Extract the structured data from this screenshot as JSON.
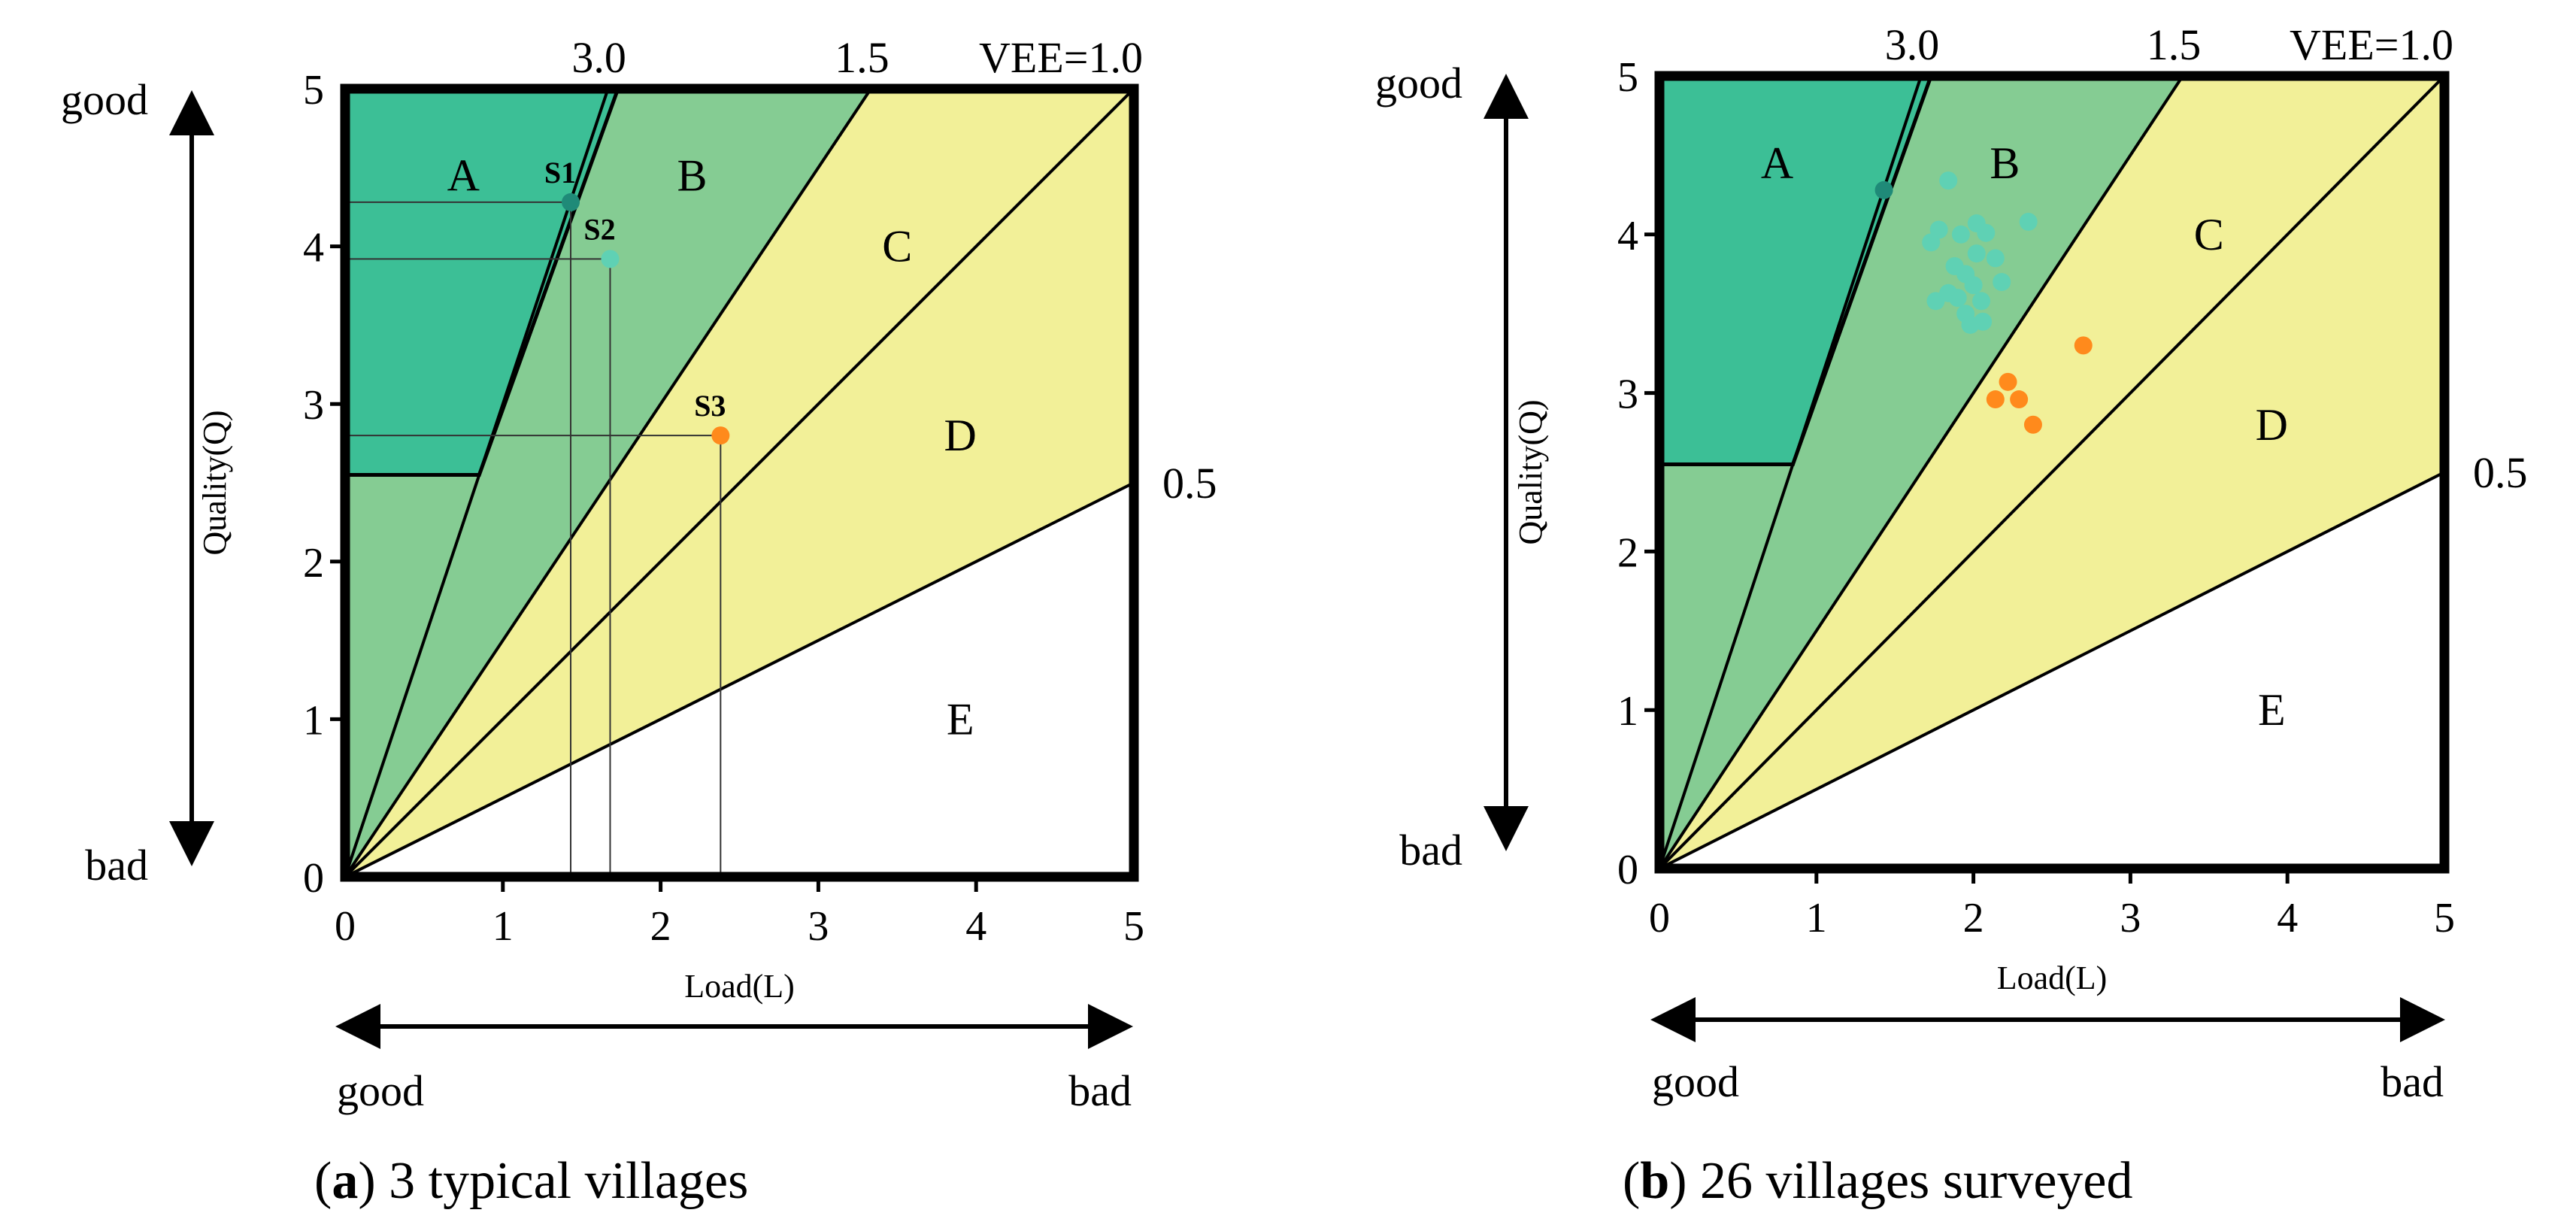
{
  "colors": {
    "zone_A": "#3cbf96",
    "zone_B": "#85cc93",
    "zone_CD": "#f2f098",
    "zone_E": "#ffffff",
    "frame": "#000000",
    "point_teal_dark": "#1f8a78",
    "point_teal_light": "#5fd1b4",
    "point_orange": "#ff8a1c",
    "guide_line": "#333333"
  },
  "chart_data": [
    {
      "type": "scatter",
      "panel": "a",
      "caption": {
        "letter": "a",
        "text": ") 3 typical villages"
      },
      "xlabel": "Load(L)",
      "ylabel": "Quality(Q)",
      "xlim": [
        0,
        5
      ],
      "ylim": [
        0,
        5
      ],
      "x_ticks": [
        "0",
        "1",
        "2",
        "3",
        "4",
        "5"
      ],
      "y_ticks": [
        "0",
        "1",
        "2",
        "3",
        "4",
        "5"
      ],
      "axis_direction": {
        "x_good": "good",
        "x_bad": "bad",
        "y_good": "good",
        "y_bad": "bad"
      },
      "vee_lines": [
        {
          "label": "3.0",
          "slope": 3.0
        },
        {
          "label": "1.5",
          "slope": 1.5
        },
        {
          "label": "VEE=1.0",
          "slope": 1.0
        },
        {
          "label": "0.5",
          "slope": 0.5
        }
      ],
      "zone_A_polygon": [
        [
          0,
          5
        ],
        [
          1.73,
          5
        ],
        [
          0.85,
          2.55
        ],
        [
          0,
          2.55
        ]
      ],
      "zones": [
        "A",
        "B",
        "C",
        "D",
        "E"
      ],
      "points": [
        {
          "label": "S1",
          "x": 1.43,
          "y": 4.28,
          "color_key": "point_teal_dark"
        },
        {
          "label": "S2",
          "x": 1.68,
          "y": 3.92,
          "color_key": "point_teal_light"
        },
        {
          "label": "S3",
          "x": 2.38,
          "y": 2.8,
          "color_key": "point_orange"
        }
      ]
    },
    {
      "type": "scatter",
      "panel": "b",
      "caption": {
        "letter": "b",
        "text": ") 26 villages surveyed"
      },
      "xlabel": "Load(L)",
      "ylabel": "Quality(Q)",
      "xlim": [
        0,
        5
      ],
      "ylim": [
        0,
        5
      ],
      "x_ticks": [
        "0",
        "1",
        "2",
        "3",
        "4",
        "5"
      ],
      "y_ticks": [
        "0",
        "1",
        "2",
        "3",
        "4",
        "5"
      ],
      "axis_direction": {
        "x_good": "good",
        "x_bad": "bad",
        "y_good": "good",
        "y_bad": "bad"
      },
      "vee_lines": [
        {
          "label": "3.0",
          "slope": 3.0
        },
        {
          "label": "1.5",
          "slope": 1.5
        },
        {
          "label": "VEE=1.0",
          "slope": 1.0
        },
        {
          "label": "0.5",
          "slope": 0.5
        }
      ],
      "zone_A_polygon": [
        [
          0,
          5
        ],
        [
          1.73,
          5
        ],
        [
          0.85,
          2.55
        ],
        [
          0,
          2.55
        ]
      ],
      "zones": [
        "A",
        "B",
        "C",
        "D",
        "E"
      ],
      "points": [
        {
          "x": 1.43,
          "y": 4.28,
          "color_key": "point_teal_dark"
        },
        {
          "x": 1.73,
          "y": 3.95,
          "color_key": "point_teal_light"
        },
        {
          "x": 1.78,
          "y": 4.03,
          "color_key": "point_teal_light"
        },
        {
          "x": 1.84,
          "y": 4.34,
          "color_key": "point_teal_light"
        },
        {
          "x": 1.92,
          "y": 4.0,
          "color_key": "point_teal_light"
        },
        {
          "x": 2.02,
          "y": 4.07,
          "color_key": "point_teal_light"
        },
        {
          "x": 2.08,
          "y": 4.01,
          "color_key": "point_teal_light"
        },
        {
          "x": 2.35,
          "y": 4.08,
          "color_key": "point_teal_light"
        },
        {
          "x": 1.88,
          "y": 3.8,
          "color_key": "point_teal_light"
        },
        {
          "x": 1.95,
          "y": 3.75,
          "color_key": "point_teal_light"
        },
        {
          "x": 2.02,
          "y": 3.88,
          "color_key": "point_teal_light"
        },
        {
          "x": 2.14,
          "y": 3.85,
          "color_key": "point_teal_light"
        },
        {
          "x": 2.18,
          "y": 3.7,
          "color_key": "point_teal_light"
        },
        {
          "x": 2.0,
          "y": 3.68,
          "color_key": "point_teal_light"
        },
        {
          "x": 1.76,
          "y": 3.58,
          "color_key": "point_teal_light"
        },
        {
          "x": 1.9,
          "y": 3.6,
          "color_key": "point_teal_light"
        },
        {
          "x": 2.05,
          "y": 3.58,
          "color_key": "point_teal_light"
        },
        {
          "x": 1.95,
          "y": 3.5,
          "color_key": "point_teal_light"
        },
        {
          "x": 1.98,
          "y": 3.43,
          "color_key": "point_teal_light"
        },
        {
          "x": 2.06,
          "y": 3.45,
          "color_key": "point_teal_light"
        },
        {
          "x": 1.84,
          "y": 3.63,
          "color_key": "point_teal_light"
        },
        {
          "x": 2.7,
          "y": 3.3,
          "color_key": "point_orange"
        },
        {
          "x": 2.22,
          "y": 3.07,
          "color_key": "point_orange"
        },
        {
          "x": 2.14,
          "y": 2.96,
          "color_key": "point_orange"
        },
        {
          "x": 2.29,
          "y": 2.96,
          "color_key": "point_orange"
        },
        {
          "x": 2.38,
          "y": 2.8,
          "color_key": "point_orange"
        }
      ]
    }
  ]
}
